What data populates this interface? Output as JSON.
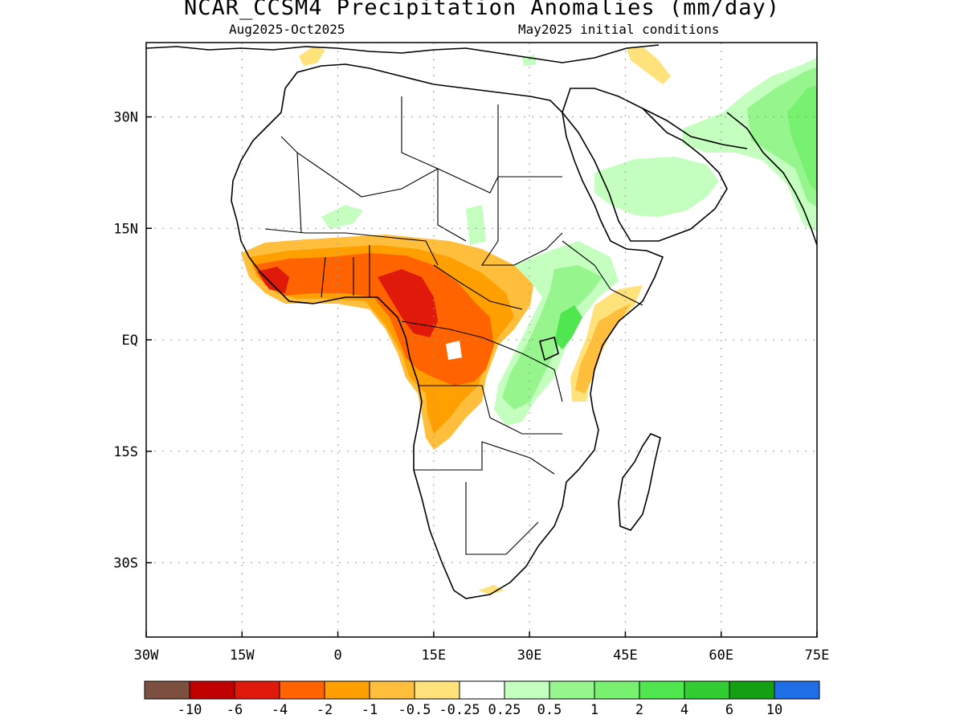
{
  "title": "NCAR_CCSM4 Precipitation Anomalies (mm/day)",
  "subtitle_left": "Aug2025-Oct2025",
  "subtitle_right": "May2025 initial conditions",
  "map": {
    "lon_ticks": [
      "30W",
      "15W",
      "0",
      "15E",
      "30E",
      "45E",
      "60E",
      "75E"
    ],
    "lat_ticks": [
      "30N",
      "15N",
      "EQ",
      "15S",
      "30S"
    ],
    "extent": {
      "lon_min": -30,
      "lon_max": 75,
      "lat_min": -40,
      "lat_max": 40
    },
    "land_color": "#ffffff",
    "coast_color": "#000000"
  },
  "colorbar": {
    "colors": [
      "#7b5040",
      "#c00000",
      "#e01a0a",
      "#ff6400",
      "#ffa000",
      "#ffbe3c",
      "#ffe27a",
      "#ffffff",
      "#c4ffbf",
      "#96f58c",
      "#78f070",
      "#50e650",
      "#32cd32",
      "#14a014",
      "#1e6ee6"
    ],
    "labels": [
      "-10",
      "-6",
      "-4",
      "-2",
      "-1",
      "-0.5",
      "-0.25",
      "0.25",
      "0.5",
      "1",
      "2",
      "4",
      "6",
      "10"
    ]
  }
}
